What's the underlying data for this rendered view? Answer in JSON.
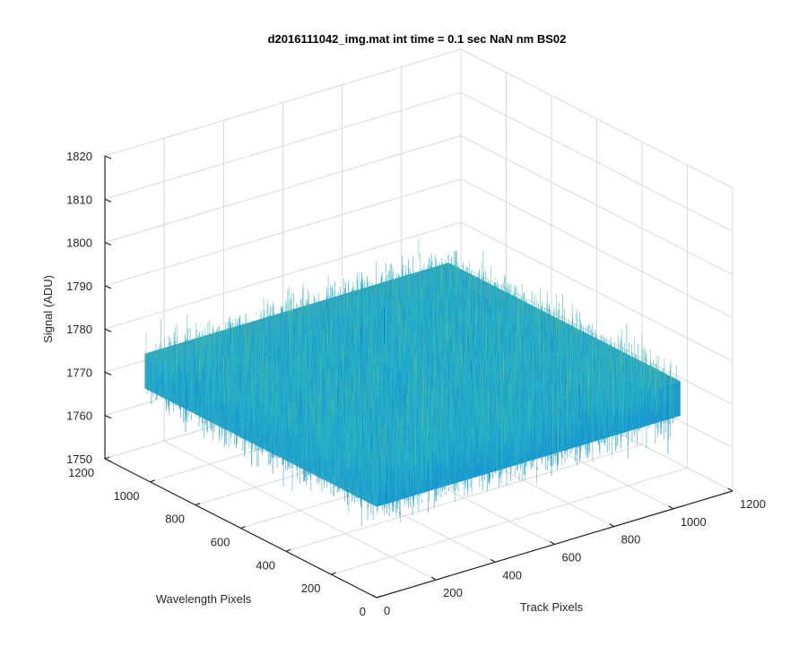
{
  "chart_data": {
    "type": "surface3d",
    "title": "d2016111042_img.mat int time = 0.1 sec  NaN nm BS02",
    "xlabel": "Track Pixels",
    "ylabel": "Wavelength Pixels",
    "zlabel": "Signal (ADU)",
    "xlim": [
      0,
      1200
    ],
    "ylim": [
      0,
      1200
    ],
    "zlim": [
      1750,
      1820
    ],
    "xticks": [
      "0",
      "200",
      "400",
      "600",
      "800",
      "1000",
      "1200"
    ],
    "yticks": [
      "0",
      "200",
      "400",
      "600",
      "800",
      "1000",
      "1200"
    ],
    "zticks": [
      "1750",
      "1760",
      "1770",
      "1780",
      "1790",
      "1800",
      "1810",
      "1820"
    ],
    "grid": true,
    "surface": {
      "x_range": [
        0,
        1024
      ],
      "y_range": [
        0,
        1024
      ],
      "mean": 1775,
      "noise_range": [
        1755,
        1812
      ],
      "colormap": [
        "#0072bd",
        "#1b9ad0",
        "#29b3c4",
        "#5cc38e",
        "#b7c84a",
        "#ecbb3a"
      ]
    }
  }
}
